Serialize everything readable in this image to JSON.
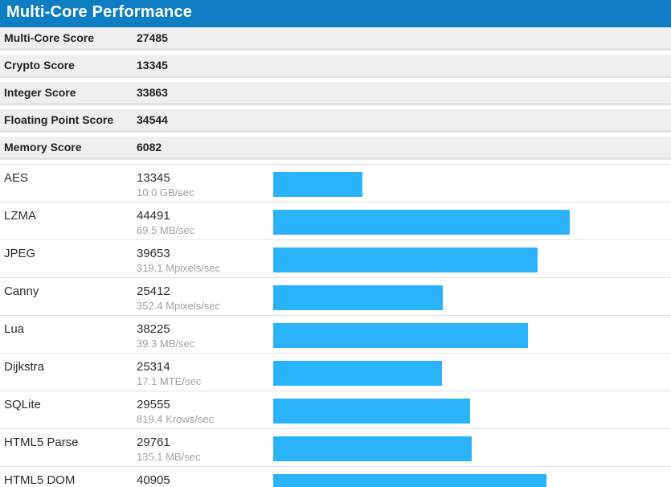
{
  "header": {
    "title": "Multi-Core Performance"
  },
  "summary": {
    "rows": [
      {
        "label": "Multi-Core Score",
        "value": "27485"
      },
      {
        "label": "Crypto Score",
        "value": "13345"
      },
      {
        "label": "Integer Score",
        "value": "33863"
      },
      {
        "label": "Floating Point Score",
        "value": "34544"
      },
      {
        "label": "Memory Score",
        "value": "6082"
      }
    ]
  },
  "chart_data": {
    "type": "bar",
    "orientation": "horizontal",
    "title": "Multi-Core Performance",
    "categories": [
      "AES",
      "LZMA",
      "JPEG",
      "Canny",
      "Lua",
      "Dijkstra",
      "SQLite",
      "HTML5 Parse",
      "HTML5 DOM"
    ],
    "values": [
      13345,
      44491,
      39653,
      25412,
      38225,
      25314,
      29555,
      29761,
      40905
    ],
    "rates": [
      "10.0 GB/sec",
      "69.5 MB/sec",
      "319.1 Mpixels/sec",
      "352.4 Mpixels/sec",
      "39.3 MB/sec",
      "17.1 MTE/sec",
      "819.4 Krows/sec",
      "135.1 MB/sec",
      ""
    ],
    "bar_scale_max": 58400,
    "grid": false,
    "legend": "none",
    "colors": {
      "bar": "#2ab3fb",
      "header_background": "#0f7dc2",
      "summary_row_background": "#efefef",
      "divider": "#e2e2e2",
      "rate_text": "#a3a3a3"
    }
  }
}
